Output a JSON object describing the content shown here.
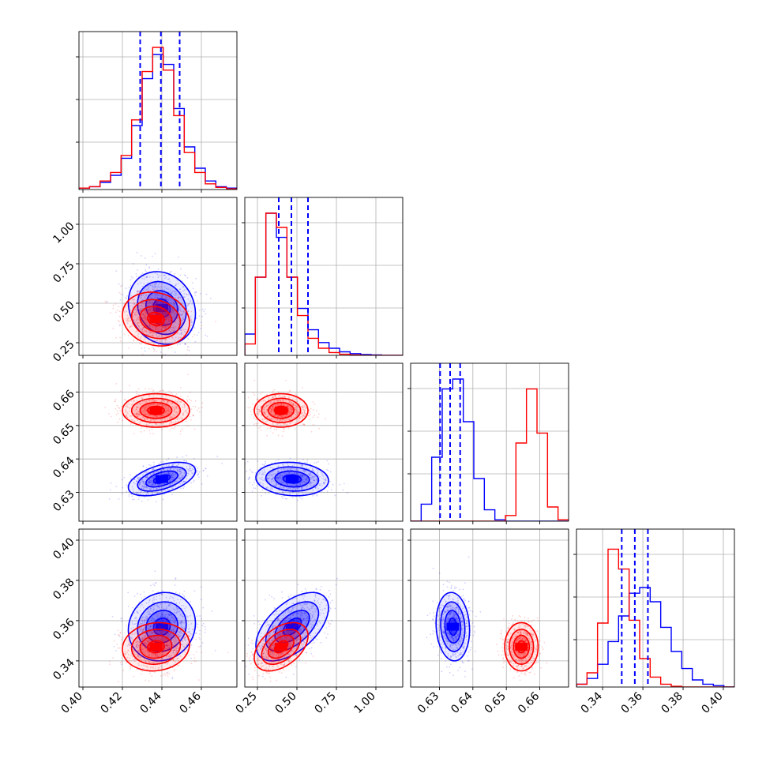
{
  "chart_data": {
    "type": "corner",
    "grid": true,
    "colors": {
      "blue": "#0000ff",
      "red": "#ff0000",
      "grid": "#b0b0b0"
    },
    "parameters": [
      {
        "range": [
          0.398,
          0.478
        ],
        "ticks": [
          0.4,
          0.42,
          0.44,
          0.46
        ],
        "tick_labels": [
          "0.40",
          "0.42",
          "0.44",
          "0.46"
        ]
      },
      {
        "range": [
          0.17,
          1.17
        ],
        "ticks": [
          0.25,
          0.5,
          0.75,
          1.0
        ],
        "tick_labels": [
          "0.25",
          "0.50",
          "0.75",
          "1.00"
        ]
      },
      {
        "range": [
          0.6214,
          0.6686
        ],
        "ticks": [
          0.63,
          0.64,
          0.65,
          0.66
        ],
        "tick_labels": [
          "0.63",
          "0.64",
          "0.65",
          "0.66"
        ]
      },
      {
        "range": [
          0.327,
          0.4055
        ],
        "ticks": [
          0.34,
          0.36,
          0.38,
          0.4
        ],
        "tick_labels": [
          "0.34",
          "0.36",
          "0.38",
          "0.40"
        ]
      }
    ],
    "quantiles": [
      [
        0.429,
        0.4395,
        0.449
      ],
      [
        0.385,
        0.465,
        0.57
      ],
      [
        0.6302,
        0.6332,
        0.6362
      ],
      [
        0.3495,
        0.356,
        0.3625
      ]
    ],
    "series": [
      {
        "color": "#0000ff",
        "means": [
          0.44,
          0.47,
          0.634,
          0.357
        ],
        "sds": [
          0.0085,
          0.115,
          0.0025,
          0.0085
        ],
        "correlations": {
          "1-0": -0.15,
          "2-0": 0.5,
          "2-1": -0.1,
          "3-0": 0.1,
          "3-1": 0.55,
          "3-2": -0.1
        },
        "histograms": [
          [
            0.01,
            0.02,
            0.05,
            0.1,
            0.22,
            0.45,
            0.78,
            0.95,
            0.88,
            0.57,
            0.3,
            0.15,
            0.06,
            0.02,
            0.01
          ],
          [
            0.15,
            0.55,
            1.0,
            0.83,
            0.55,
            0.33,
            0.18,
            0.09,
            0.05,
            0.025,
            0.012,
            0.006,
            0.003,
            0.0,
            0.0
          ],
          [
            0.0,
            0.12,
            0.45,
            0.93,
            1.0,
            0.7,
            0.3,
            0.08,
            0.01,
            0.0,
            0.0,
            0.0,
            0.0,
            0.0,
            0.0
          ],
          [
            0.02,
            0.06,
            0.16,
            0.32,
            0.5,
            0.66,
            0.7,
            0.6,
            0.42,
            0.25,
            0.13,
            0.05,
            0.02,
            0.01,
            0.0
          ]
        ]
      },
      {
        "color": "#ff0000",
        "means": [
          0.437,
          0.4,
          0.6545,
          0.347
        ],
        "sds": [
          0.0085,
          0.085,
          0.0025,
          0.006
        ],
        "correlations": {
          "1-0": -0.15,
          "2-0": 0.0,
          "2-1": 0.0,
          "3-0": 0.1,
          "3-1": 0.45,
          "3-2": 0.0
        },
        "histograms": [
          [
            0.01,
            0.02,
            0.06,
            0.12,
            0.24,
            0.49,
            0.83,
            1.0,
            0.84,
            0.52,
            0.26,
            0.12,
            0.04,
            0.015,
            0.005
          ],
          [
            0.08,
            0.55,
            1.0,
            0.9,
            0.55,
            0.28,
            0.12,
            0.05,
            0.02,
            0.008,
            0.003,
            0.0,
            0.0,
            0.0,
            0.0
          ],
          [
            0.0,
            0.0,
            0.0,
            0.0,
            0.0,
            0.0,
            0.0,
            0.0,
            0.0,
            0.04,
            0.55,
            0.93,
            0.62,
            0.1,
            0.01
          ],
          [
            0.02,
            0.1,
            0.45,
            0.97,
            0.83,
            0.47,
            0.2,
            0.07,
            0.02,
            0.005,
            0.0,
            0.0,
            0.0,
            0.0,
            0.0
          ]
        ]
      }
    ]
  }
}
